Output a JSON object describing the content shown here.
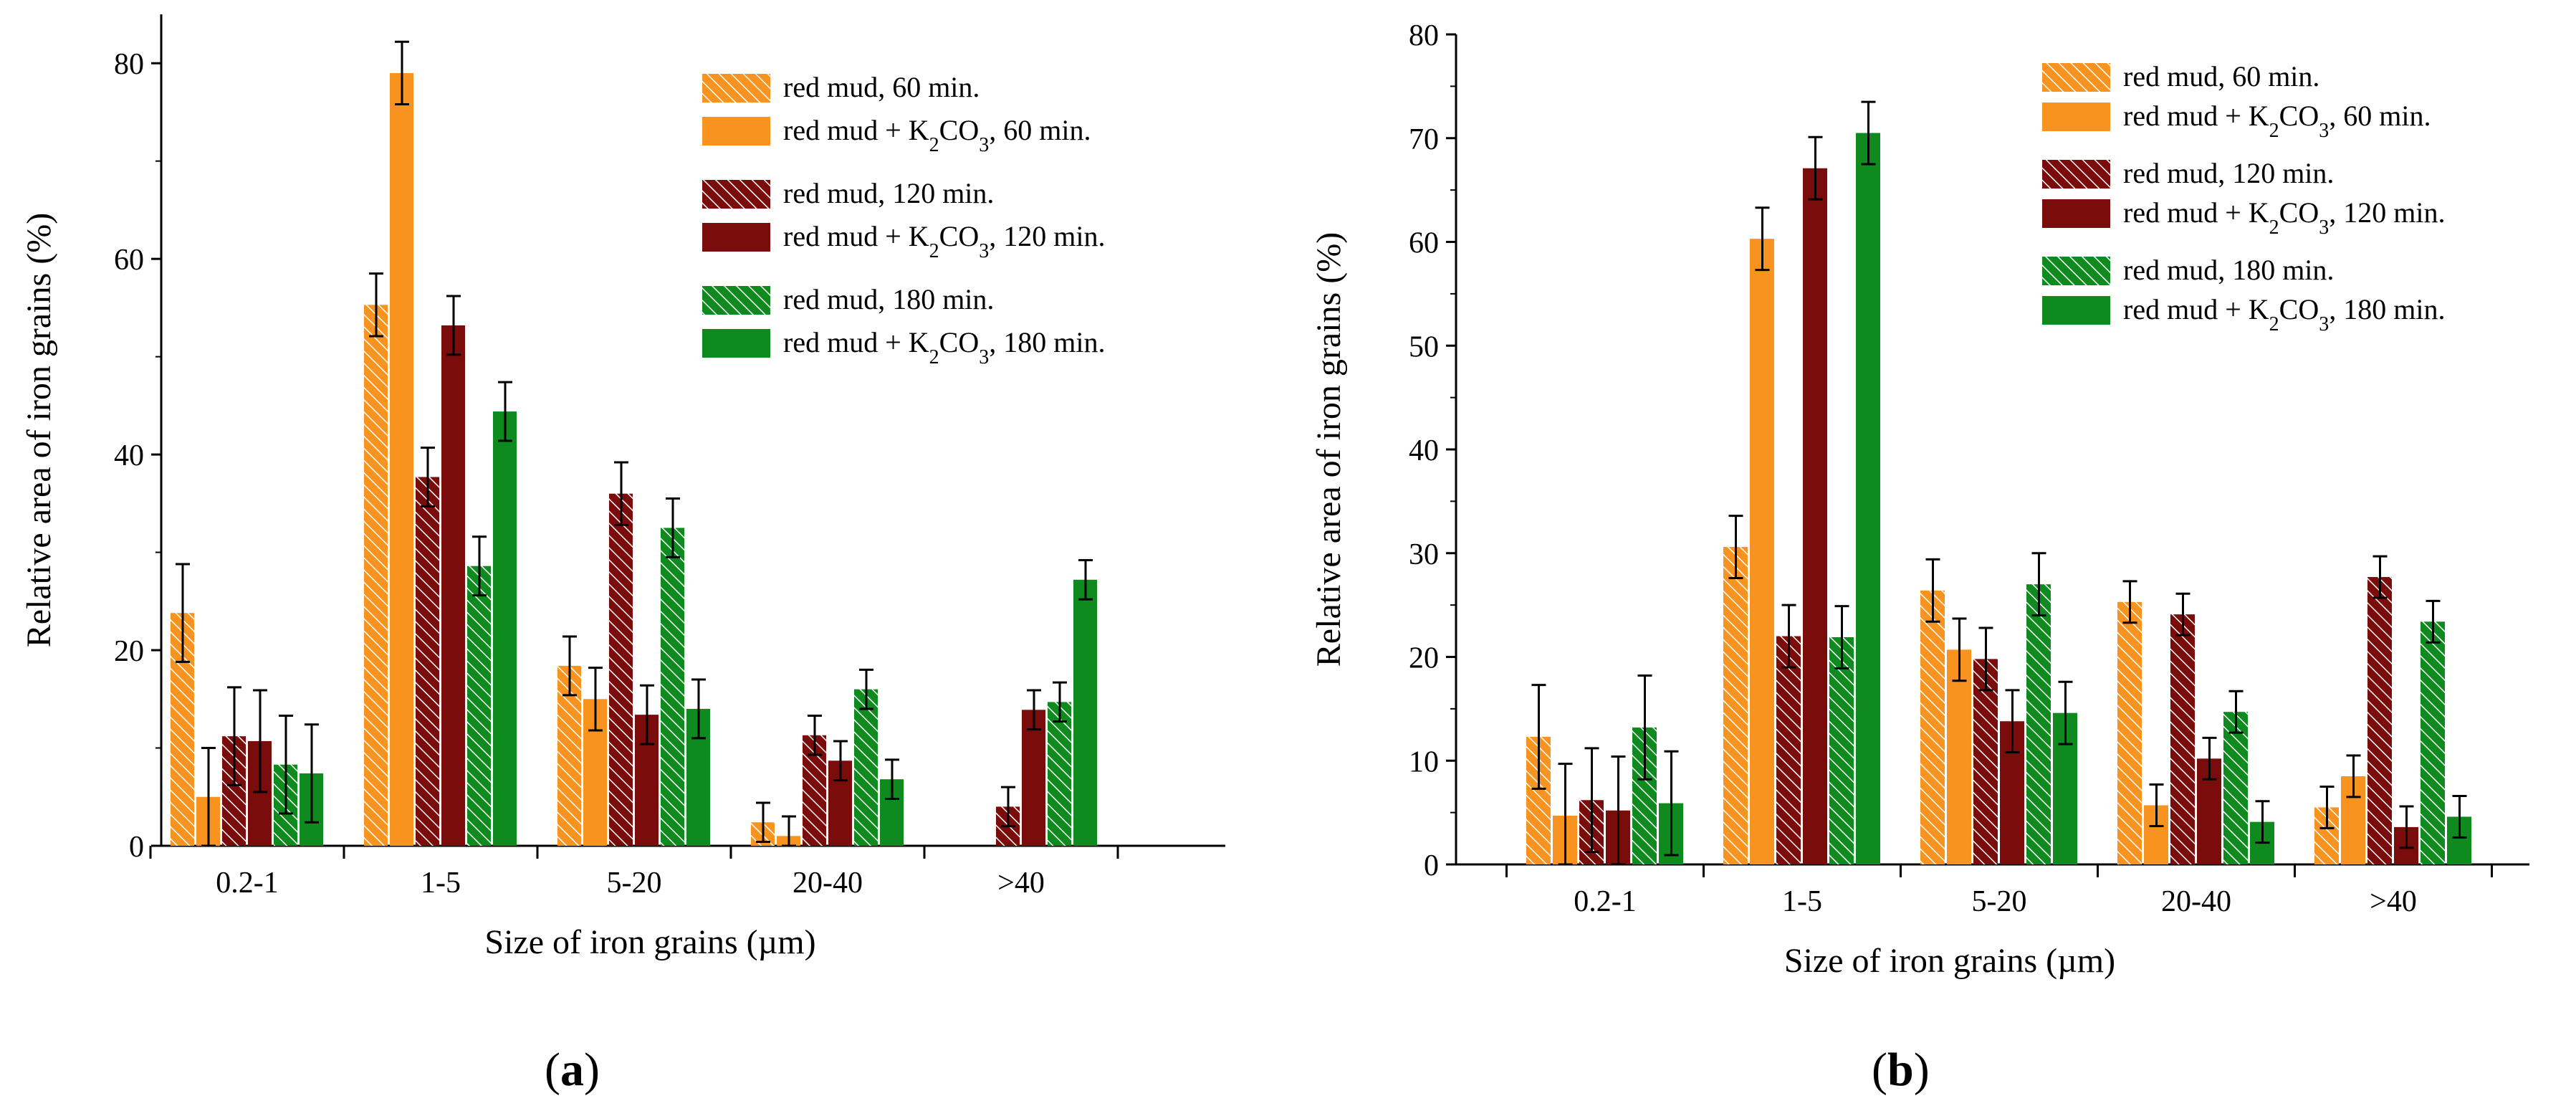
{
  "colors": {
    "orange": "#f7931e",
    "darkred": "#7b0c0c",
    "green": "#0e8a1e",
    "axis": "#000000"
  },
  "legend_labels": [
    {
      "pre": "red mud, 60 min.",
      "sub": "",
      "post": "",
      "color": "orange",
      "hatch": true
    },
    {
      "pre": "red mud + K",
      "sub": "2",
      "mid": "CO",
      "sub2": "3",
      "post": ", 60 min.",
      "color": "orange",
      "hatch": false
    },
    {
      "pre": "red mud, 120 min.",
      "sub": "",
      "post": "",
      "color": "darkred",
      "hatch": true
    },
    {
      "pre": "red mud + K",
      "sub": "2",
      "mid": "CO",
      "sub2": "3",
      "post": ", 120 min.",
      "color": "darkred",
      "hatch": false
    },
    {
      "pre": "red mud, 180 min.",
      "sub": "",
      "post": "",
      "color": "green",
      "hatch": true
    },
    {
      "pre": "red mud + K",
      "sub": "2",
      "mid": "CO",
      "sub2": "3",
      "post": ", 180 min.",
      "color": "green",
      "hatch": false
    }
  ],
  "panels": [
    "(a)",
    "(b)"
  ],
  "panel_letters": [
    "a",
    "b"
  ],
  "chart_data": [
    {
      "id": "a",
      "type": "bar",
      "title": "",
      "xlabel": "Size of iron grains (µm)",
      "ylabel": "Relative area of iron grains (%)",
      "categories": [
        "0.2-1",
        "1-5",
        "5-20",
        "20-40",
        ">40"
      ],
      "ylim": [
        0,
        85
      ],
      "yticks": [
        0,
        20,
        40,
        60,
        80
      ],
      "series": [
        {
          "name": "red mud, 60 min.",
          "values": [
            23.8,
            55.3,
            18.4,
            2.4,
            0
          ],
          "errors": [
            5,
            3.2,
            3,
            2,
            0
          ]
        },
        {
          "name": "red mud + K2CO3, 60 min.",
          "values": [
            5,
            79,
            15,
            1,
            0
          ],
          "errors": [
            5,
            3.2,
            3.2,
            2,
            0
          ]
        },
        {
          "name": "red mud, 120 min.",
          "values": [
            11.2,
            37.7,
            36,
            11.3,
            4
          ],
          "errors": [
            5,
            3,
            3.2,
            2,
            2
          ]
        },
        {
          "name": "red mud + K2CO3, 120 min.",
          "values": [
            10.7,
            53.2,
            13.4,
            8.7,
            13.9
          ],
          "errors": [
            5.2,
            3,
            3,
            2,
            2
          ]
        },
        {
          "name": "red mud, 180 min.",
          "values": [
            8.3,
            28.6,
            32.5,
            16,
            14.7
          ],
          "errors": [
            5,
            3,
            3,
            2,
            2
          ]
        },
        {
          "name": "red mud + K2CO3, 180 min.",
          "values": [
            7.4,
            44.4,
            14,
            6.8,
            27.2
          ],
          "errors": [
            5,
            3,
            3,
            2,
            2
          ]
        }
      ]
    },
    {
      "id": "b",
      "type": "bar",
      "title": "",
      "xlabel": "Size of iron grains (µm)",
      "ylabel": "Relative area of iron grains (%)",
      "categories": [
        "0.2-1",
        "1-5",
        "5-20",
        "20-40",
        ">40"
      ],
      "ylim": [
        0,
        80
      ],
      "yticks": [
        0,
        10,
        20,
        30,
        40,
        50,
        60,
        70,
        80
      ],
      "series": [
        {
          "name": "red mud, 60 min.",
          "values": [
            12.3,
            30.6,
            26.4,
            25.3,
            5.5
          ],
          "errors": [
            5,
            3,
            3,
            2,
            2
          ]
        },
        {
          "name": "red mud + K2CO3, 60 min.",
          "values": [
            4.7,
            60.3,
            20.7,
            5.7,
            8.5
          ],
          "errors": [
            5,
            3,
            3,
            2,
            2
          ]
        },
        {
          "name": "red mud, 120 min.",
          "values": [
            6.2,
            22,
            19.8,
            24.1,
            27.7
          ],
          "errors": [
            5,
            3,
            3,
            2,
            2
          ]
        },
        {
          "name": "red mud + K2CO3, 120 min.",
          "values": [
            5.2,
            67.1,
            13.8,
            10.2,
            3.6
          ],
          "errors": [
            5.2,
            3,
            3,
            2,
            2
          ]
        },
        {
          "name": "red mud, 180 min.",
          "values": [
            13.2,
            21.9,
            27,
            14.7,
            23.4
          ],
          "errors": [
            5,
            3,
            3,
            2,
            2
          ]
        },
        {
          "name": "red mud + K2CO3, 180 min.",
          "values": [
            5.9,
            70.5,
            14.6,
            4.1,
            4.6
          ],
          "errors": [
            5,
            3,
            3,
            2,
            2
          ]
        }
      ]
    }
  ]
}
